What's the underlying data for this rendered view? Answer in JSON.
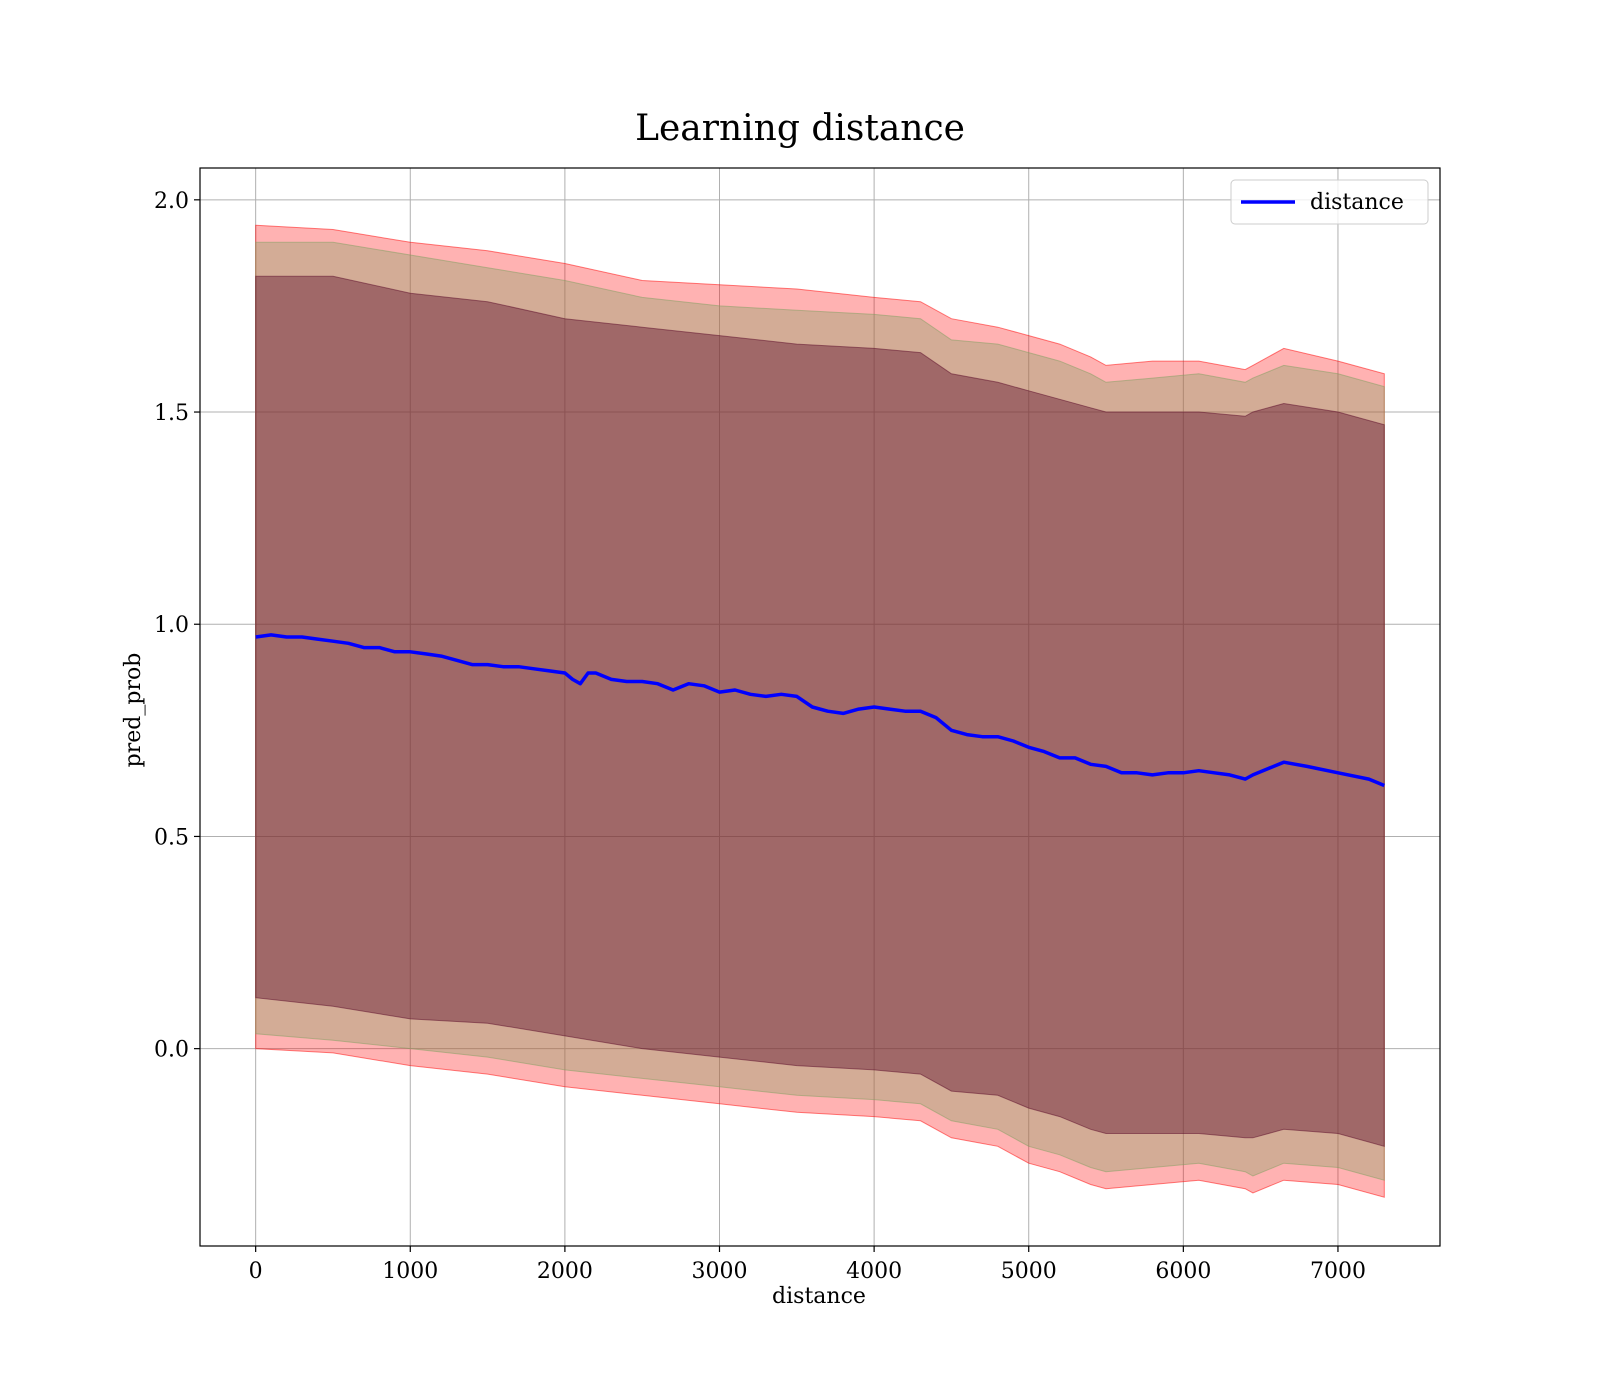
{
  "chart_data": {
    "type": "line",
    "title": "Learning distance",
    "xlabel": "distance",
    "ylabel": "pred_prob",
    "xlim": [
      -360,
      7660
    ],
    "ylim": [
      -0.465,
      2.075
    ],
    "x_ticks": [
      0,
      1000,
      2000,
      3000,
      4000,
      5000,
      6000,
      7000
    ],
    "y_ticks": [
      0.0,
      0.5,
      1.0,
      1.5,
      2.0
    ],
    "x_tick_labels": [
      "0",
      "1000",
      "2000",
      "3000",
      "4000",
      "5000",
      "6000",
      "7000"
    ],
    "y_tick_labels": [
      "0.0",
      "0.5",
      "1.0",
      "1.5",
      "2.0"
    ],
    "grid": true,
    "legend_position": "top-right",
    "series": [
      {
        "name": "distance",
        "color": "#0000ff",
        "x": [
          0,
          100,
          200,
          300,
          400,
          500,
          600,
          700,
          800,
          900,
          1000,
          1100,
          1200,
          1300,
          1400,
          1500,
          1600,
          1700,
          1800,
          1900,
          2000,
          2050,
          2100,
          2150,
          2200,
          2300,
          2400,
          2500,
          2600,
          2700,
          2800,
          2900,
          3000,
          3100,
          3200,
          3300,
          3400,
          3500,
          3600,
          3700,
          3800,
          3900,
          4000,
          4100,
          4200,
          4300,
          4400,
          4500,
          4600,
          4700,
          4800,
          4900,
          5000,
          5100,
          5200,
          5300,
          5400,
          5500,
          5600,
          5700,
          5800,
          5900,
          6000,
          6100,
          6200,
          6300,
          6400,
          6450,
          6550,
          6650,
          6800,
          7000,
          7200,
          7300
        ],
        "values": [
          0.97,
          0.975,
          0.97,
          0.97,
          0.965,
          0.96,
          0.955,
          0.945,
          0.945,
          0.935,
          0.935,
          0.93,
          0.925,
          0.915,
          0.905,
          0.905,
          0.9,
          0.9,
          0.895,
          0.89,
          0.885,
          0.87,
          0.86,
          0.885,
          0.885,
          0.87,
          0.865,
          0.865,
          0.86,
          0.845,
          0.86,
          0.855,
          0.84,
          0.845,
          0.835,
          0.83,
          0.835,
          0.83,
          0.805,
          0.795,
          0.79,
          0.8,
          0.805,
          0.8,
          0.795,
          0.795,
          0.78,
          0.75,
          0.74,
          0.735,
          0.735,
          0.725,
          0.71,
          0.7,
          0.685,
          0.685,
          0.67,
          0.665,
          0.65,
          0.65,
          0.645,
          0.65,
          0.65,
          0.655,
          0.65,
          0.645,
          0.635,
          0.645,
          0.66,
          0.675,
          0.665,
          0.65,
          0.635,
          0.62
        ]
      }
    ],
    "bands": [
      {
        "color": "#ff0000",
        "opacity": 0.3,
        "x": [
          0,
          500,
          1000,
          1500,
          2000,
          2500,
          3000,
          3500,
          4000,
          4300,
          4500,
          4800,
          5000,
          5200,
          5400,
          5500,
          5800,
          6100,
          6400,
          6450,
          6650,
          7000,
          7300
        ],
        "upper": [
          1.94,
          1.93,
          1.9,
          1.88,
          1.85,
          1.81,
          1.8,
          1.79,
          1.77,
          1.76,
          1.72,
          1.7,
          1.68,
          1.66,
          1.63,
          1.61,
          1.62,
          1.62,
          1.6,
          1.61,
          1.65,
          1.62,
          1.59
        ],
        "lower": [
          0.0,
          -0.01,
          -0.04,
          -0.06,
          -0.09,
          -0.11,
          -0.13,
          -0.15,
          -0.16,
          -0.17,
          -0.21,
          -0.23,
          -0.27,
          -0.29,
          -0.32,
          -0.33,
          -0.32,
          -0.31,
          -0.33,
          -0.34,
          -0.31,
          -0.32,
          -0.35
        ]
      },
      {
        "color": "#80a060",
        "opacity": 0.35,
        "x": [
          0,
          500,
          1000,
          1500,
          2000,
          2500,
          3000,
          3500,
          4000,
          4300,
          4500,
          4800,
          5000,
          5200,
          5400,
          5500,
          5800,
          6100,
          6400,
          6450,
          6650,
          7000,
          7300
        ],
        "upper": [
          1.9,
          1.9,
          1.87,
          1.84,
          1.81,
          1.77,
          1.75,
          1.74,
          1.73,
          1.72,
          1.67,
          1.66,
          1.64,
          1.62,
          1.59,
          1.57,
          1.58,
          1.59,
          1.57,
          1.58,
          1.61,
          1.59,
          1.56
        ],
        "lower": [
          0.035,
          0.02,
          0.0,
          -0.02,
          -0.05,
          -0.07,
          -0.09,
          -0.11,
          -0.12,
          -0.13,
          -0.17,
          -0.19,
          -0.23,
          -0.25,
          -0.28,
          -0.29,
          -0.28,
          -0.27,
          -0.29,
          -0.3,
          -0.27,
          -0.28,
          -0.31
        ]
      },
      {
        "color": "#5a0a28",
        "opacity": 0.42,
        "x": [
          0,
          500,
          1000,
          1500,
          2000,
          2500,
          3000,
          3500,
          4000,
          4300,
          4500,
          4800,
          5000,
          5200,
          5400,
          5500,
          5800,
          6100,
          6400,
          6450,
          6650,
          7000,
          7300
        ],
        "upper": [
          1.82,
          1.82,
          1.78,
          1.76,
          1.72,
          1.7,
          1.68,
          1.66,
          1.65,
          1.64,
          1.59,
          1.57,
          1.55,
          1.53,
          1.51,
          1.5,
          1.5,
          1.5,
          1.49,
          1.5,
          1.52,
          1.5,
          1.47
        ],
        "lower": [
          0.12,
          0.1,
          0.07,
          0.06,
          0.03,
          0.0,
          -0.02,
          -0.04,
          -0.05,
          -0.06,
          -0.1,
          -0.11,
          -0.14,
          -0.16,
          -0.19,
          -0.2,
          -0.2,
          -0.2,
          -0.21,
          -0.21,
          -0.19,
          -0.2,
          -0.23
        ]
      }
    ]
  }
}
